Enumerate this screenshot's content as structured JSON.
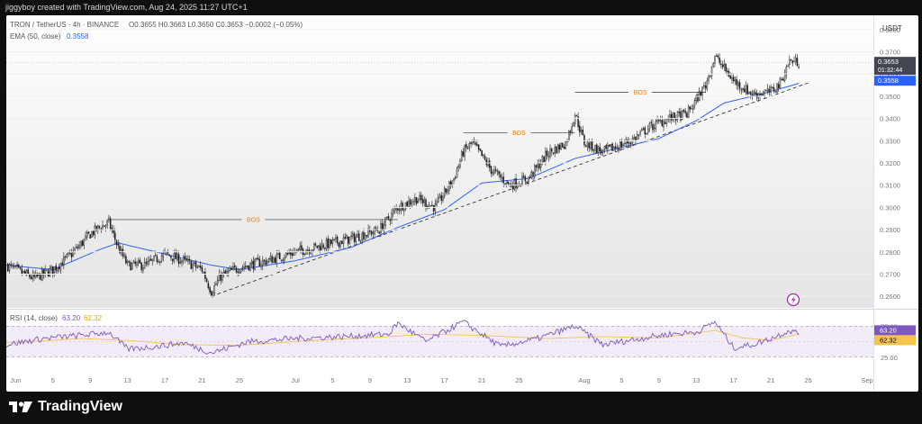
{
  "header": {
    "credit": "jiggyboy created with TradingView.com, Aug 24, 2025 11:27 UTC+1"
  },
  "legend": {
    "symbol": "TRON / TetherUS · 4h · BINANCE",
    "ohlc": "O0.3655 H0.3663 L0.3650 C0.3653 −0.0002 (−0.05%)",
    "ema_label": "EMA (50, close)",
    "ema_value": "0.3558",
    "rsi_label": "RSI (14, close)",
    "rsi_value": "63.20",
    "rsi_ma_value": "62.32"
  },
  "price_axis": {
    "currency": "USDT",
    "ticks": [
      "0.3800",
      "0.3700",
      "0.3600",
      "0.3500",
      "0.3400",
      "0.3300",
      "0.3200",
      "0.3100",
      "0.3000",
      "0.2900",
      "0.2800",
      "0.2700",
      "0.2600"
    ],
    "last_price": "0.3653",
    "countdown": "01:32:44",
    "ema_tag": "0.3558"
  },
  "rsi_axis": {
    "ticks": [
      "75.00",
      "25.00"
    ]
  },
  "time_axis": {
    "labels": [
      "Jun",
      "5",
      "9",
      "13",
      "17",
      "21",
      "25",
      "Jul",
      "5",
      "9",
      "13",
      "17",
      "21",
      "25",
      "Aug",
      "5",
      "9",
      "13",
      "17",
      "21",
      "25",
      "Sep"
    ]
  },
  "annotations": {
    "bos": [
      "BOS",
      "BOS",
      "BOS"
    ]
  },
  "colors": {
    "candle": "#1f1f1f",
    "ema": "#2962ff",
    "rsi": "#7e57c2",
    "rsi_ma": "#f7c34c",
    "bos_text": "#f57c00",
    "price_tag": "#434651",
    "ema_tag": "#2962ff",
    "rsi_tag": "#7e57c2",
    "rsi_ma_tag": "#f7c34c"
  },
  "footer": {
    "brand": "TradingView"
  },
  "chart_data": {
    "type": "candlestick",
    "interval": "4h",
    "price_range": [
      0.256,
      0.384
    ],
    "rsi_range": [
      0,
      100
    ],
    "rsi_bands": [
      25,
      75
    ],
    "date_range": [
      "2025-05-31",
      "2025-09-01"
    ],
    "close_path": [
      [
        "2025-05-31",
        0.274
      ],
      [
        "2025-06-02",
        0.27
      ],
      [
        "2025-06-03",
        0.268
      ],
      [
        "2025-06-05",
        0.272
      ],
      [
        "2025-06-07",
        0.279
      ],
      [
        "2025-06-09",
        0.288
      ],
      [
        "2025-06-10",
        0.291
      ],
      [
        "2025-06-11",
        0.293
      ],
      [
        "2025-06-12",
        0.282
      ],
      [
        "2025-06-13",
        0.274
      ],
      [
        "2025-06-15",
        0.274
      ],
      [
        "2025-06-17",
        0.279
      ],
      [
        "2025-06-19",
        0.276
      ],
      [
        "2025-06-21",
        0.272
      ],
      [
        "2025-06-22",
        0.262
      ],
      [
        "2025-06-23",
        0.269
      ],
      [
        "2025-06-25",
        0.273
      ],
      [
        "2025-06-28",
        0.276
      ],
      [
        "2025-07-01",
        0.28
      ],
      [
        "2025-07-04",
        0.283
      ],
      [
        "2025-07-07",
        0.286
      ],
      [
        "2025-07-10",
        0.29
      ],
      [
        "2025-07-12",
        0.3
      ],
      [
        "2025-07-14",
        0.304
      ],
      [
        "2025-07-16",
        0.3
      ],
      [
        "2025-07-18",
        0.313
      ],
      [
        "2025-07-19",
        0.325
      ],
      [
        "2025-07-20",
        0.329
      ],
      [
        "2025-07-22",
        0.317
      ],
      [
        "2025-07-24",
        0.31
      ],
      [
        "2025-07-26",
        0.313
      ],
      [
        "2025-07-28",
        0.324
      ],
      [
        "2025-07-30",
        0.329
      ],
      [
        "2025-07-31",
        0.342
      ],
      [
        "2025-08-01",
        0.329
      ],
      [
        "2025-08-03",
        0.325
      ],
      [
        "2025-08-06",
        0.33
      ],
      [
        "2025-08-08",
        0.336
      ],
      [
        "2025-08-10",
        0.34
      ],
      [
        "2025-08-12",
        0.342
      ],
      [
        "2025-08-14",
        0.355
      ],
      [
        "2025-08-15",
        0.368
      ],
      [
        "2025-08-17",
        0.357
      ],
      [
        "2025-08-19",
        0.351
      ],
      [
        "2025-08-21",
        0.352
      ],
      [
        "2025-08-22",
        0.356
      ],
      [
        "2025-08-23",
        0.366
      ],
      [
        "2025-08-24",
        0.3653
      ]
    ],
    "ema_path": [
      [
        "2025-05-31",
        0.274
      ],
      [
        "2025-06-05",
        0.272
      ],
      [
        "2025-06-10",
        0.281
      ],
      [
        "2025-06-12",
        0.284
      ],
      [
        "2025-06-17",
        0.279
      ],
      [
        "2025-06-22",
        0.274
      ],
      [
        "2025-06-25",
        0.272
      ],
      [
        "2025-07-01",
        0.276
      ],
      [
        "2025-07-07",
        0.282
      ],
      [
        "2025-07-12",
        0.291
      ],
      [
        "2025-07-17",
        0.299
      ],
      [
        "2025-07-21",
        0.311
      ],
      [
        "2025-07-26",
        0.313
      ],
      [
        "2025-07-31",
        0.322
      ],
      [
        "2025-08-04",
        0.326
      ],
      [
        "2025-08-09",
        0.331
      ],
      [
        "2025-08-13",
        0.339
      ],
      [
        "2025-08-16",
        0.347
      ],
      [
        "2025-08-20",
        0.351
      ],
      [
        "2025-08-24",
        0.3558
      ]
    ],
    "trendline": [
      [
        "2025-06-22",
        0.26
      ],
      [
        "2025-08-25",
        0.356
      ]
    ],
    "bos_levels": [
      {
        "label": "BOS",
        "level": 0.2945,
        "from": "2025-06-11",
        "to": "2025-07-12"
      },
      {
        "label": "BOS",
        "level": 0.3335,
        "from": "2025-07-19",
        "to": "2025-07-31"
      },
      {
        "label": "BOS",
        "level": 0.3518,
        "from": "2025-07-31",
        "to": "2025-08-14"
      }
    ],
    "rsi_path": [
      [
        "2025-05-31",
        45
      ],
      [
        "2025-06-04",
        55
      ],
      [
        "2025-06-08",
        60
      ],
      [
        "2025-06-11",
        65
      ],
      [
        "2025-06-13",
        38
      ],
      [
        "2025-06-16",
        42
      ],
      [
        "2025-06-19",
        48
      ],
      [
        "2025-06-22",
        32
      ],
      [
        "2025-06-26",
        50
      ],
      [
        "2025-07-01",
        55
      ],
      [
        "2025-07-06",
        58
      ],
      [
        "2025-07-11",
        62
      ],
      [
        "2025-07-12",
        80
      ],
      [
        "2025-07-15",
        50
      ],
      [
        "2025-07-19",
        82
      ],
      [
        "2025-07-23",
        42
      ],
      [
        "2025-07-27",
        55
      ],
      [
        "2025-07-31",
        75
      ],
      [
        "2025-08-03",
        45
      ],
      [
        "2025-08-07",
        55
      ],
      [
        "2025-08-10",
        62
      ],
      [
        "2025-08-13",
        65
      ],
      [
        "2025-08-15",
        82
      ],
      [
        "2025-08-17",
        40
      ],
      [
        "2025-08-19",
        45
      ],
      [
        "2025-08-21",
        55
      ],
      [
        "2025-08-23",
        68
      ],
      [
        "2025-08-24",
        63.2
      ]
    ],
    "rsi_ma_path": [
      [
        "2025-05-31",
        48
      ],
      [
        "2025-06-08",
        55
      ],
      [
        "2025-06-13",
        52
      ],
      [
        "2025-06-19",
        45
      ],
      [
        "2025-06-25",
        44
      ],
      [
        "2025-07-03",
        52
      ],
      [
        "2025-07-11",
        58
      ],
      [
        "2025-07-15",
        62
      ],
      [
        "2025-07-21",
        60
      ],
      [
        "2025-07-28",
        55
      ],
      [
        "2025-08-03",
        58
      ],
      [
        "2025-08-09",
        56
      ],
      [
        "2025-08-15",
        68
      ],
      [
        "2025-08-18",
        56
      ],
      [
        "2025-08-21",
        52
      ],
      [
        "2025-08-24",
        62.32
      ]
    ]
  }
}
